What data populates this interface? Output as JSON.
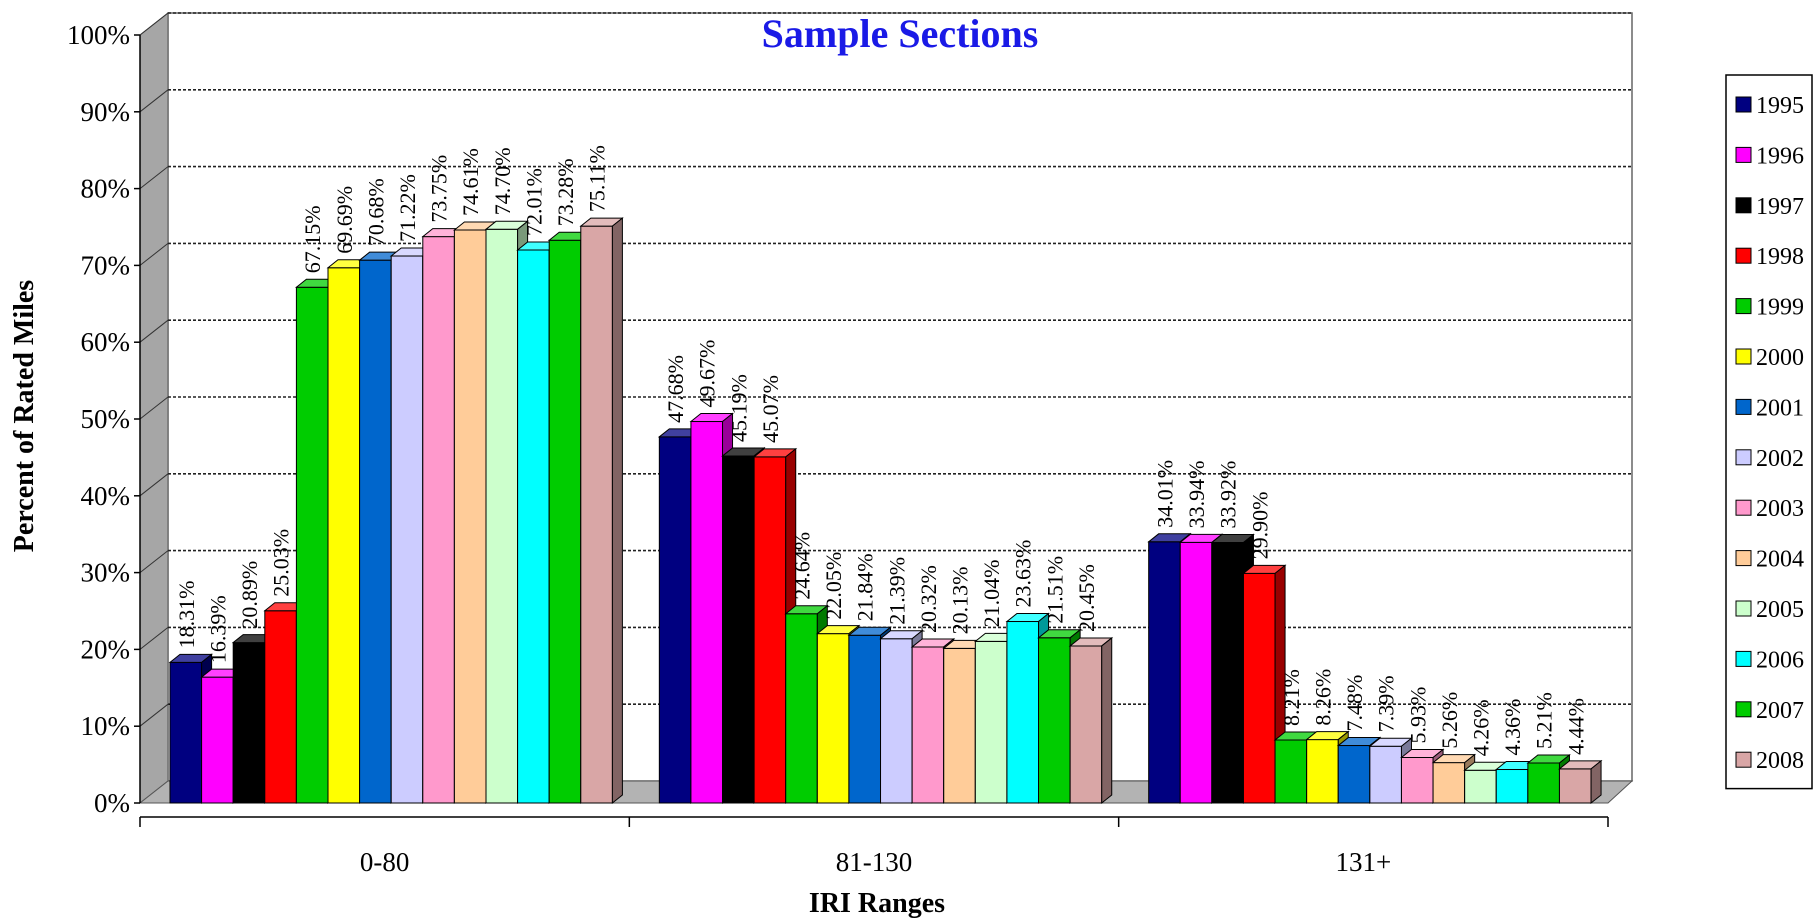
{
  "chart_data": {
    "type": "bar",
    "title": "Sample Sections",
    "xlabel": "IRI Ranges",
    "ylabel": "Percent of Rated Miles",
    "ylim": [
      0,
      100
    ],
    "y_ticks": [
      "0%",
      "10%",
      "20%",
      "30%",
      "40%",
      "50%",
      "60%",
      "70%",
      "80%",
      "90%",
      "100%"
    ],
    "grid": true,
    "legend_position": "right",
    "categories": [
      "0-80",
      "81-130",
      "131+"
    ],
    "series": [
      {
        "name": "1995",
        "color": "#000080",
        "values": [
          18.31,
          47.68,
          34.01
        ],
        "labels": [
          "18.31%",
          "47.68%",
          "34.01%"
        ]
      },
      {
        "name": "1996",
        "color": "#ff00ff",
        "values": [
          16.39,
          49.67,
          33.94
        ],
        "labels": [
          "16.39%",
          "49.67%",
          "33.94%"
        ]
      },
      {
        "name": "1997",
        "color": "#000000",
        "values": [
          20.89,
          45.19,
          33.92
        ],
        "labels": [
          "20.89%",
          "45.19%",
          "33.92%"
        ]
      },
      {
        "name": "1998",
        "color": "#ff0000",
        "values": [
          25.03,
          45.07,
          29.9
        ],
        "labels": [
          "25.03%",
          "45.07%",
          "29.90%"
        ]
      },
      {
        "name": "1999",
        "color": "#00cc00",
        "values": [
          67.15,
          24.64,
          8.21
        ],
        "labels": [
          "67.15%",
          "24.64%",
          "8.21%"
        ]
      },
      {
        "name": "2000",
        "color": "#ffff00",
        "values": [
          69.69,
          22.05,
          8.26
        ],
        "labels": [
          "69.69%",
          "22.05%",
          "8.26%"
        ]
      },
      {
        "name": "2001",
        "color": "#0066cc",
        "values": [
          70.68,
          21.84,
          7.48
        ],
        "labels": [
          "70.68%",
          "21.84%",
          "7.48%"
        ]
      },
      {
        "name": "2002",
        "color": "#ccccff",
        "values": [
          71.22,
          21.39,
          7.39
        ],
        "labels": [
          "71.22%",
          "21.39%",
          "7.39%"
        ]
      },
      {
        "name": "2003",
        "color": "#ff99cc",
        "values": [
          73.75,
          20.32,
          5.93
        ],
        "labels": [
          "73.75%",
          "20.32%",
          "5.93%"
        ]
      },
      {
        "name": "2004",
        "color": "#ffcc99",
        "values": [
          74.61,
          20.13,
          5.26
        ],
        "labels": [
          "74.61%",
          "20.13%",
          "5.26%"
        ]
      },
      {
        "name": "2005",
        "color": "#ccffcc",
        "values": [
          74.7,
          21.04,
          4.26
        ],
        "labels": [
          "74.70%",
          "21.04%",
          "4.26%"
        ]
      },
      {
        "name": "2006",
        "color": "#00ffff",
        "values": [
          72.01,
          23.63,
          4.36
        ],
        "labels": [
          "72.01%",
          "23.63%",
          "4.36%"
        ]
      },
      {
        "name": "2007",
        "color": "#00cc00",
        "values": [
          73.28,
          21.51,
          5.21
        ],
        "labels": [
          "73.28%",
          "21.51%",
          "5.21%"
        ]
      },
      {
        "name": "2008",
        "color": "#d9a6a6",
        "values": [
          75.11,
          20.45,
          4.44
        ],
        "labels": [
          "75.11%",
          "20.45%",
          "4.44%"
        ]
      }
    ]
  }
}
